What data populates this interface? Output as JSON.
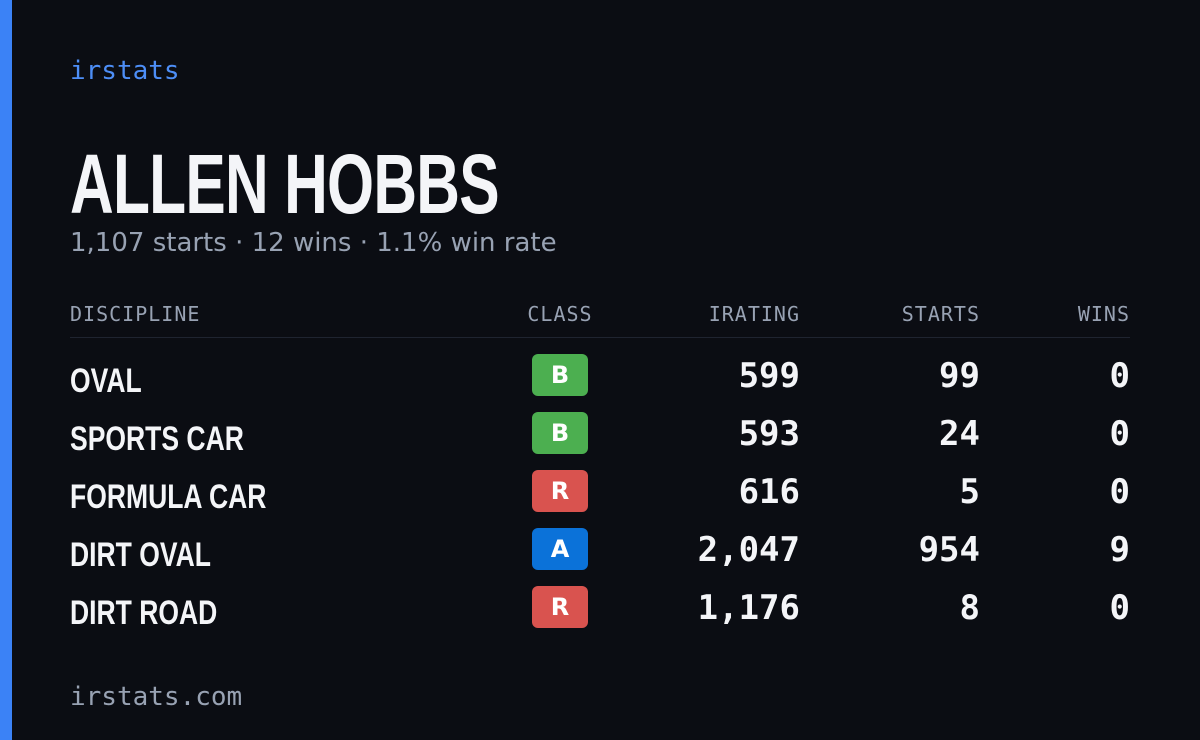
{
  "brand": "irstats",
  "driver": {
    "name": "ALLEN HOBBS",
    "summary": "1,107 starts · 12 wins · 1.1% win rate"
  },
  "table": {
    "headers": [
      "DISCIPLINE",
      "CLASS",
      "IRATING",
      "STARTS",
      "WINS"
    ],
    "rows": [
      {
        "discipline": "OVAL",
        "class": "B",
        "class_color": "#4caf50",
        "irating": "599",
        "starts": "99",
        "wins": "0"
      },
      {
        "discipline": "SPORTS CAR",
        "class": "B",
        "class_color": "#4caf50",
        "irating": "593",
        "starts": "24",
        "wins": "0"
      },
      {
        "discipline": "FORMULA CAR",
        "class": "R",
        "class_color": "#d9534f",
        "irating": "616",
        "starts": "5",
        "wins": "0"
      },
      {
        "discipline": "DIRT OVAL",
        "class": "A",
        "class_color": "#0b72d9",
        "irating": "2,047",
        "starts": "954",
        "wins": "9"
      },
      {
        "discipline": "DIRT ROAD",
        "class": "R",
        "class_color": "#d9534f",
        "irating": "1,176",
        "starts": "8",
        "wins": "0"
      }
    ]
  },
  "footer": "irstats.com"
}
